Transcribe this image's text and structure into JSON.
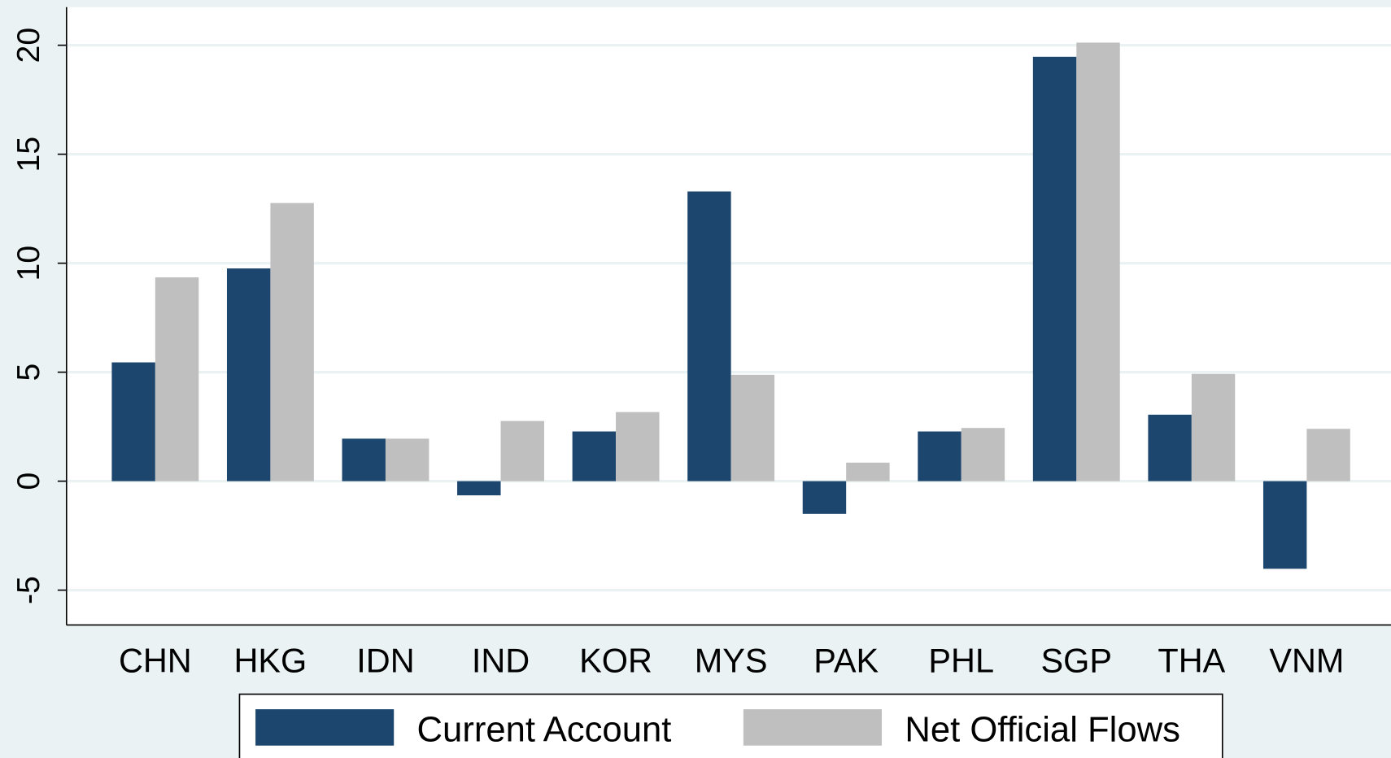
{
  "chart_data": {
    "type": "bar",
    "categories": [
      "CHN",
      "HKG",
      "IDN",
      "IND",
      "KOR",
      "MYS",
      "PAK",
      "PHL",
      "SGP",
      "THA",
      "VNM"
    ],
    "series": [
      {
        "name": "Current Account",
        "color": "#1c466d",
        "values": [
          5.45,
          9.76,
          1.95,
          -0.65,
          2.28,
          13.29,
          -1.5,
          2.28,
          19.47,
          3.05,
          -4.02
        ]
      },
      {
        "name": "Net Official Flows",
        "color": "#bfbfbf",
        "values": [
          9.35,
          12.76,
          1.95,
          2.76,
          3.17,
          4.88,
          0.85,
          2.44,
          20.12,
          4.92,
          2.4
        ]
      }
    ],
    "ylim": [
      -6.6,
      21.75
    ],
    "yticks": [
      -5,
      0,
      5,
      10,
      15,
      20
    ],
    "grid": true
  }
}
